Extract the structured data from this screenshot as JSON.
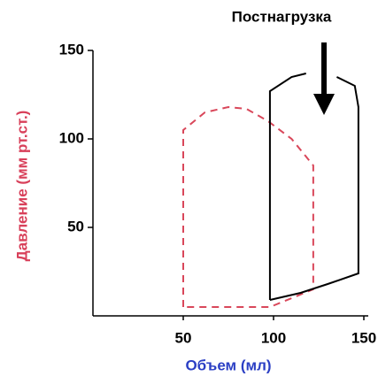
{
  "chart_data": {
    "type": "line",
    "annotation": "Постнагрузка",
    "x_label": "Объем (мл)",
    "y_label": "Давление (мм рт.ст.)",
    "x_label_color": "#2b3fc4",
    "y_label_color": "#d8405a",
    "xlim": [
      0,
      150
    ],
    "ylim": [
      0,
      150
    ],
    "xticks": [
      50,
      100,
      150
    ],
    "yticks": [
      50,
      100,
      150
    ],
    "series": [
      {
        "color": "#d9475a",
        "dashed": true,
        "x": [
          50,
          50,
          62,
          75,
          85,
          97,
          110,
          122,
          122,
          98,
          50
        ],
        "values": [
          5,
          105,
          115,
          118,
          117,
          110,
          100,
          85,
          15,
          5,
          5
        ]
      },
      {
        "color": "#000000",
        "dashed": false,
        "x": [
          98,
          98,
          110,
          118,
          null,
          135,
          145,
          147,
          147,
          130,
          115,
          98
        ],
        "values": [
          9,
          127,
          135,
          137,
          null,
          135,
          130,
          118,
          24,
          18,
          13,
          9
        ]
      }
    ]
  }
}
